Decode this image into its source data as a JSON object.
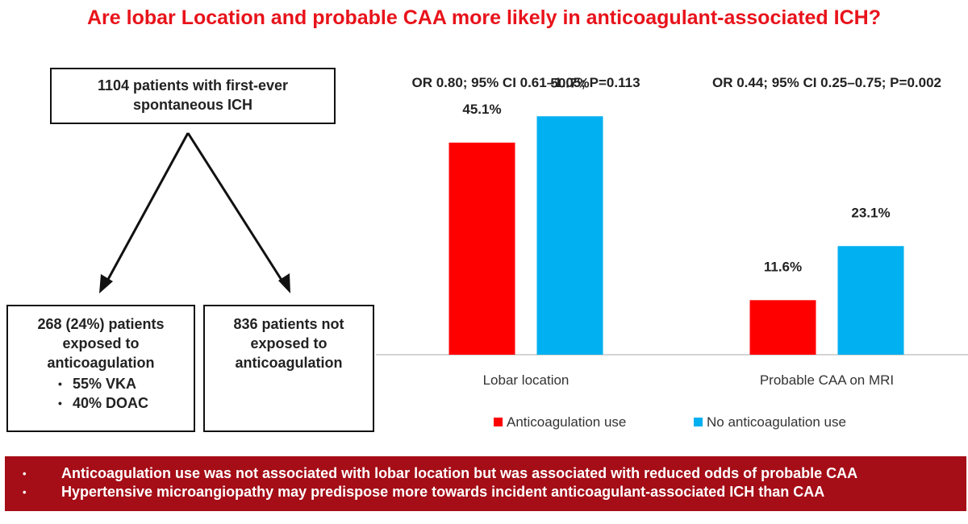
{
  "title": "Are lobar Location and probable CAA more likely in anticoagulant-associated ICH?",
  "flowchart": {
    "top_box": [
      "1104 patients with first-ever",
      "spontaneous ICH"
    ],
    "left_box": {
      "lines": [
        "268 (24%) patients",
        "exposed to",
        "anticoagulation"
      ],
      "bullets": [
        "55% VKA",
        "40% DOAC"
      ]
    },
    "right_box": [
      "836 patients not",
      "exposed to",
      "anticoagulation"
    ]
  },
  "chart_data": {
    "type": "bar",
    "categories": [
      "Lobar location",
      "Probable CAA on MRI"
    ],
    "series": [
      {
        "name": "Anticoagulation use",
        "values": [
          45.1,
          11.6
        ],
        "labels": [
          "45.1%",
          "11.6%"
        ],
        "color": "#ff0000"
      },
      {
        "name": "No anticoagulation use",
        "values": [
          50.7,
          23.1
        ],
        "labels": [
          "50.7%",
          "23.1%"
        ],
        "color": "#00b0f0"
      }
    ],
    "annotations": [
      "OR 0.80; 95% CI 0.61–1.05; P=0.113",
      "OR 0.44; 95% CI 0.25–0.75; P=0.002"
    ],
    "ylim": [
      0,
      60
    ],
    "grid": false,
    "legend_position": "bottom"
  },
  "footer": {
    "points": [
      "Anticoagulation use was not associated with lobar location but was associated with reduced odds of probable CAA",
      "Hypertensive microangiopathy may predispose more towards incident anticoagulant-associated ICH than CAA"
    ]
  }
}
